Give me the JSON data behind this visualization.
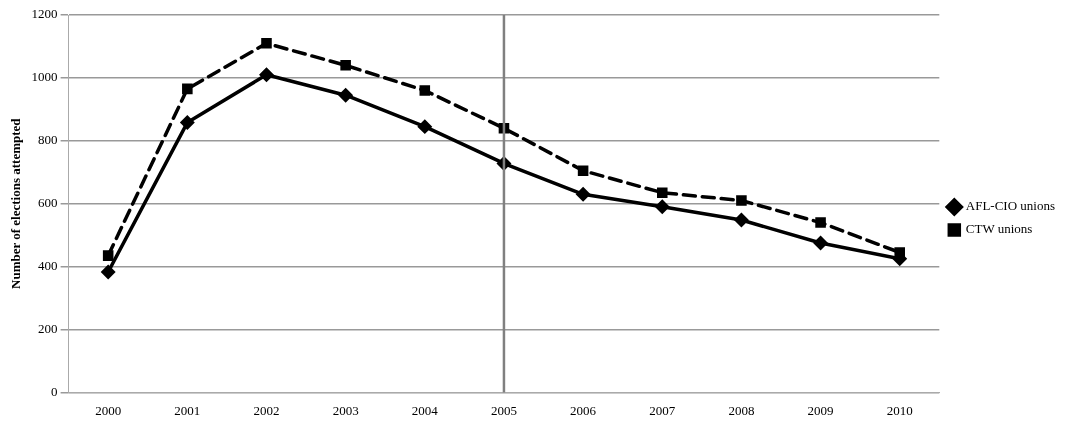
{
  "chart_data": {
    "type": "line",
    "ylabel": "Number of elections attempted",
    "categories": [
      "2000",
      "2001",
      "2002",
      "2003",
      "2004",
      "2005",
      "2006",
      "2007",
      "2008",
      "2009",
      "2010"
    ],
    "series": [
      {
        "name": "AFL-CIO unions",
        "color": "#000000",
        "marker": "diamond",
        "line_style": "solid",
        "values": [
          383,
          858,
          1010,
          945,
          845,
          728,
          630,
          590,
          548,
          475,
          425
        ]
      },
      {
        "name": "CTW unions",
        "color": "#000000",
        "marker": "square",
        "line_style": "dashed",
        "values": [
          435,
          965,
          1110,
          1040,
          960,
          840,
          705,
          635,
          610,
          540,
          445
        ]
      }
    ],
    "ylim": [
      0,
      1200
    ],
    "yticks": [
      0,
      200,
      400,
      600,
      800,
      1000,
      1200
    ],
    "grid": "y",
    "legend": "right",
    "ref_lines": [
      {
        "axis": "x",
        "value": "2005",
        "color": "#808080"
      }
    ]
  }
}
